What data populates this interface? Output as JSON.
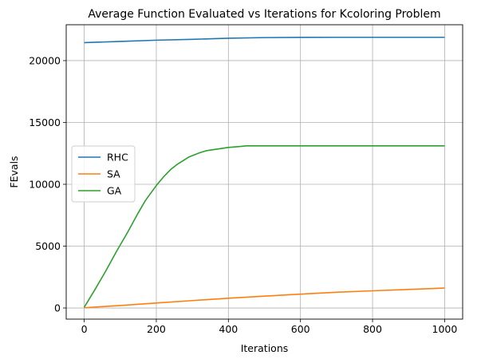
{
  "chart_data": {
    "type": "line",
    "title": "Average Function Evaluated vs Iterations for Kcoloring Problem",
    "xlabel": "Iterations",
    "ylabel": "FEvals",
    "xlim": [
      -50,
      1050
    ],
    "ylim": [
      -900,
      22900
    ],
    "xticks": [
      0,
      200,
      400,
      600,
      800,
      1000
    ],
    "yticks": [
      0,
      5000,
      10000,
      15000,
      20000
    ],
    "grid": true,
    "legend_position": "center-left",
    "series": [
      {
        "name": "RHC",
        "color": "#1f77b4",
        "x": [
          0,
          100,
          200,
          300,
          400,
          500,
          600,
          700,
          800,
          900,
          1000
        ],
        "y": [
          21450,
          21550,
          21650,
          21720,
          21810,
          21860,
          21880,
          21885,
          21885,
          21885,
          21885
        ]
      },
      {
        "name": "SA",
        "color": "#ff7f0e",
        "x": [
          0,
          100,
          200,
          300,
          400,
          500,
          600,
          700,
          800,
          900,
          1000
        ],
        "y": [
          20,
          200,
          400,
          600,
          790,
          960,
          1120,
          1270,
          1390,
          1500,
          1610
        ]
      },
      {
        "name": "GA",
        "color": "#2ca02c",
        "x": [
          0,
          30,
          60,
          90,
          120,
          150,
          170,
          200,
          220,
          240,
          260,
          290,
          320,
          340,
          370,
          400,
          430,
          450,
          500,
          600,
          700,
          800,
          900,
          1000
        ],
        "y": [
          60,
          1500,
          3000,
          4600,
          6100,
          7700,
          8700,
          9900,
          10600,
          11200,
          11650,
          12200,
          12550,
          12720,
          12850,
          12980,
          13050,
          13110,
          13110,
          13110,
          13110,
          13110,
          13110,
          13110
        ]
      }
    ]
  }
}
